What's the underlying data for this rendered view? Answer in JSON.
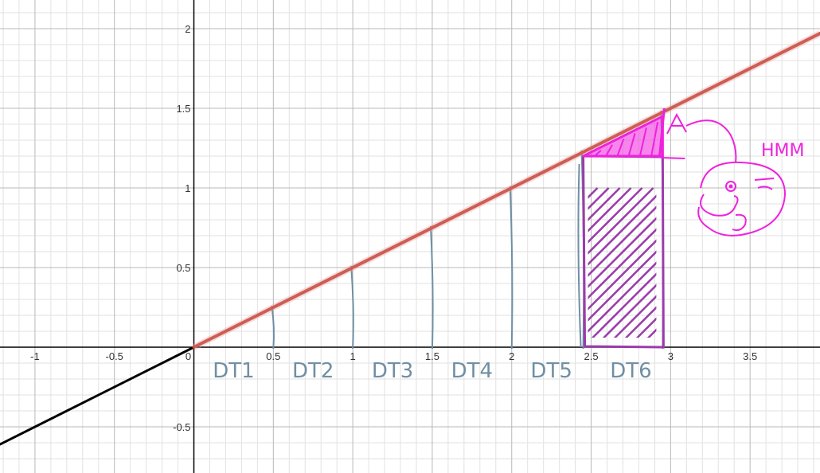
{
  "chart_data": {
    "type": "line",
    "xlim": [
      -1.22,
      3.94
    ],
    "ylim": [
      -0.79,
      2.18
    ],
    "grid": true,
    "x_ticks": [
      {
        "value": -1,
        "label": "-1"
      },
      {
        "value": -0.5,
        "label": "-0.5"
      },
      {
        "value": 0,
        "label": "0"
      },
      {
        "value": 0.5,
        "label": "0.5"
      },
      {
        "value": 1,
        "label": "1"
      },
      {
        "value": 1.5,
        "label": "1.5"
      },
      {
        "value": 2,
        "label": "2"
      },
      {
        "value": 2.5,
        "label": "2.5"
      },
      {
        "value": 3,
        "label": "3"
      },
      {
        "value": 3.5,
        "label": "3.5"
      }
    ],
    "y_ticks": [
      {
        "value": -0.5,
        "label": "-0.5"
      },
      {
        "value": 0.5,
        "label": "0.5"
      },
      {
        "value": 1,
        "label": "1"
      },
      {
        "value": 1.5,
        "label": "1.5"
      },
      {
        "value": 2,
        "label": "2"
      }
    ],
    "series": [
      {
        "slope": 0.5,
        "x_start": -1.22,
        "x_end": 0,
        "color": "#000000"
      },
      {
        "slope": 0.5,
        "x_start": 0,
        "x_end": 3.94,
        "color": "#c0392b"
      }
    ],
    "annotations": {
      "intervals": [
        {
          "label": "DT1",
          "x_from": 0,
          "x_to": 0.5
        },
        {
          "label": "DT2",
          "x_from": 0.5,
          "x_to": 1
        },
        {
          "label": "DT3",
          "x_from": 1,
          "x_to": 1.5
        },
        {
          "label": "DT4",
          "x_from": 1.5,
          "x_to": 2
        },
        {
          "label": "DT5",
          "x_from": 2,
          "x_to": 2.5
        },
        {
          "label": "DT6",
          "x_from": 2.5,
          "x_to": 3
        }
      ],
      "dividers_x": [
        0.5,
        1,
        1.5,
        2,
        2.45,
        2.95
      ],
      "shaded_rectangle": {
        "x_from": 2.45,
        "x_to": 2.95,
        "height": 1.2
      },
      "shaded_triangle": {
        "x_from": 2.45,
        "x_to": 2.95,
        "y_low": 1.2,
        "y_high": 1.45
      },
      "note": "HMM",
      "colors": {
        "axis": "#000000",
        "grid_major": "#b8b8b8",
        "grid_minor": "#e2e2e2",
        "dt_marks": "#6f8fa3",
        "highlight": "#ee22dd",
        "rect_outline": "#9b3cab"
      }
    }
  }
}
